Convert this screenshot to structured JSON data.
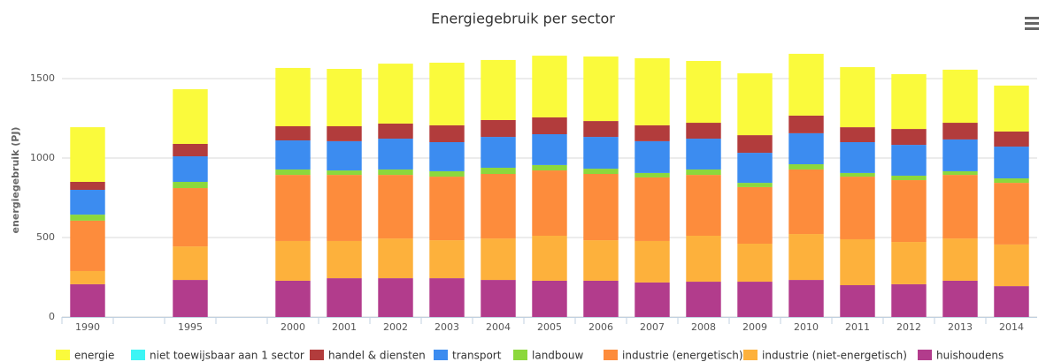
{
  "chart_data": {
    "type": "stacked-bar",
    "title": "Energiegebruik per sector",
    "y_label": "energiegebruik (PJ)",
    "categories": [
      "1990",
      null,
      "1995",
      null,
      "2000",
      "2001",
      "2002",
      "2003",
      "2004",
      "2005",
      "2006",
      "2007",
      "2008",
      "2009",
      "2010",
      "2011",
      "2012",
      "2013",
      "2014"
    ],
    "ylim": [
      0,
      1750
    ],
    "yticks": [
      0,
      500,
      1000,
      1500
    ],
    "grid": true,
    "legend": "bottom",
    "series": [
      {
        "name": "energie",
        "color": "#fafa3c",
        "values": [
          344,
          null,
          344,
          null,
          367,
          361,
          377,
          394,
          378,
          388,
          406,
          422,
          389,
          389,
          389,
          378,
          345,
          334,
          289
        ]
      },
      {
        "name": "niet toewijsbaar aan 1 sector",
        "color": "#3cf5f5",
        "values": [
          0,
          null,
          0,
          null,
          0,
          0,
          0,
          0,
          0,
          0,
          0,
          0,
          0,
          0,
          0,
          0,
          0,
          0,
          0
        ]
      },
      {
        "name": "handel & diensten",
        "color": "#b23c3c",
        "values": [
          50,
          null,
          78,
          null,
          89,
          94,
          95,
          106,
          106,
          106,
          100,
          100,
          100,
          111,
          111,
          94,
          100,
          105,
          95
        ]
      },
      {
        "name": "transport",
        "color": "#3c8cf0",
        "values": [
          156,
          null,
          161,
          null,
          183,
          184,
          194,
          183,
          194,
          194,
          200,
          200,
          194,
          189,
          195,
          194,
          194,
          200,
          200
        ]
      },
      {
        "name": "landbouw",
        "color": "#8cd83c",
        "values": [
          38,
          null,
          39,
          null,
          34,
          28,
          34,
          34,
          39,
          34,
          33,
          28,
          34,
          27,
          33,
          23,
          28,
          23,
          28
        ]
      },
      {
        "name": "industrie (energetisch)",
        "color": "#fd8c3c",
        "values": [
          317,
          null,
          367,
          null,
          416,
          416,
          400,
          400,
          406,
          411,
          417,
          400,
          383,
          356,
          406,
          394,
          389,
          400,
          388
        ]
      },
      {
        "name": "industrie (niet-energetisch)",
        "color": "#fdb13c",
        "values": [
          83,
          null,
          211,
          null,
          250,
          234,
          250,
          239,
          261,
          283,
          255,
          261,
          289,
          239,
          289,
          289,
          266,
          266,
          262
        ]
      },
      {
        "name": "huishoudens",
        "color": "#b23c8c",
        "values": [
          206,
          null,
          233,
          null,
          228,
          244,
          244,
          244,
          233,
          228,
          228,
          217,
          222,
          222,
          233,
          200,
          206,
          228,
          194
        ]
      }
    ]
  }
}
